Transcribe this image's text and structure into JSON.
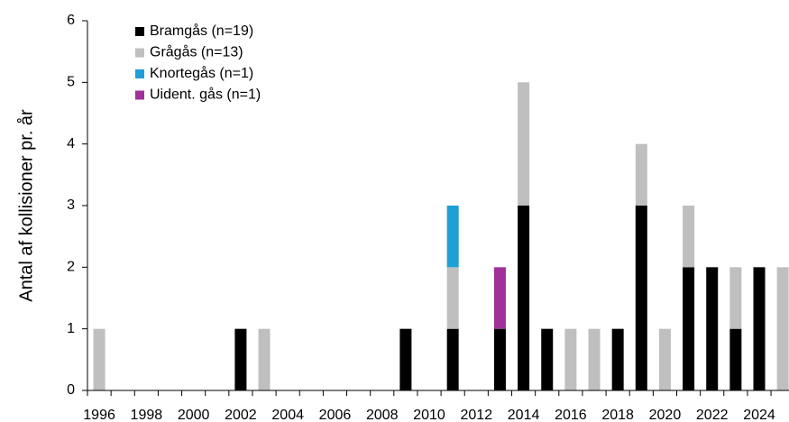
{
  "chart_data": {
    "type": "stacked_bar",
    "y_label": "Antal af kollisioner pr. år",
    "categories": [
      "1996",
      null,
      "1998",
      null,
      "2000",
      null,
      "2002",
      null,
      "2004",
      null,
      "2006",
      null,
      "2008",
      null,
      "2010",
      null,
      "2012",
      null,
      "2014",
      null,
      "2016",
      null,
      "2018",
      null,
      "2020",
      null,
      "2022",
      null,
      "2024",
      null
    ],
    "series": [
      {
        "name": "Bramgås (n=19)",
        "color": "#000000",
        "values": [
          0,
          0,
          0,
          0,
          0,
          0,
          1,
          0,
          0,
          0,
          0,
          0,
          0,
          1,
          0,
          1,
          0,
          1,
          3,
          1,
          0,
          0,
          1,
          3,
          0,
          2,
          2,
          1,
          2,
          0
        ]
      },
      {
        "name": "Grågås (n=13)",
        "color": "#bfbfbf",
        "values": [
          1,
          0,
          0,
          0,
          0,
          0,
          0,
          1,
          0,
          0,
          0,
          0,
          0,
          0,
          0,
          1,
          0,
          0,
          2,
          0,
          1,
          1,
          0,
          1,
          1,
          1,
          0,
          1,
          0,
          2
        ]
      },
      {
        "name": "Knortegås (n=1)",
        "color": "#1f9fd7",
        "values": [
          0,
          0,
          0,
          0,
          0,
          0,
          0,
          0,
          0,
          0,
          0,
          0,
          0,
          0,
          0,
          1,
          0,
          0,
          0,
          0,
          0,
          0,
          0,
          0,
          0,
          0,
          0,
          0,
          0,
          0
        ]
      },
      {
        "name": "Uident. gås (n=1)",
        "color": "#a0309a",
        "values": [
          0,
          0,
          0,
          0,
          0,
          0,
          0,
          0,
          0,
          0,
          0,
          0,
          0,
          0,
          0,
          0,
          0,
          1,
          0,
          0,
          0,
          0,
          0,
          0,
          0,
          0,
          0,
          0,
          0,
          0
        ]
      }
    ],
    "ylim": [
      0,
      6
    ],
    "yticks": [
      0,
      1,
      2,
      3,
      4,
      5,
      6
    ],
    "legend": "upper left"
  }
}
